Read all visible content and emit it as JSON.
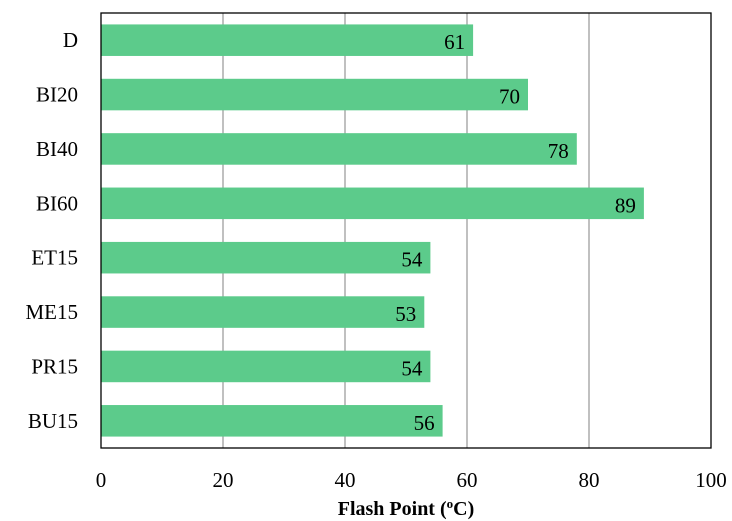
{
  "chart_data": {
    "type": "bar",
    "orientation": "horizontal",
    "categories": [
      "D",
      "BI20",
      "BI40",
      "BI60",
      "ET15",
      "ME15",
      "PR15",
      "BU15"
    ],
    "values": [
      61,
      70,
      78,
      89,
      54,
      53,
      54,
      56
    ],
    "xlabel": "Flash Point (",
    "xlabel_sup": "o",
    "xlabel_end": "C)",
    "xlim": [
      0,
      100
    ],
    "xticks": [
      0,
      20,
      40,
      60,
      80,
      100
    ],
    "grid": "vertical",
    "bar_color": "#5ccb8b"
  }
}
